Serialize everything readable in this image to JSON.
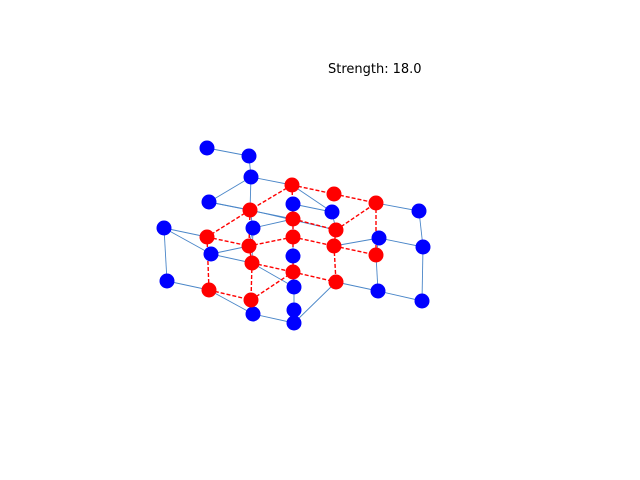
{
  "strength": {
    "label": "Strength:",
    "value": "18.0"
  },
  "colors": {
    "background": "#ffffff",
    "blue_node": "#0000ff",
    "red_node": "#ff0000",
    "blue_edge": "#4a86c8",
    "red_edge": "#ff0000"
  },
  "legend_note": ""
}
